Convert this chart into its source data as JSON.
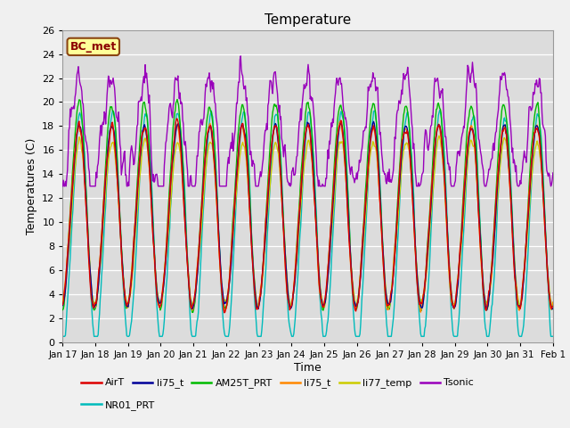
{
  "title": "Temperature",
  "ylabel": "Temperatures (C)",
  "xlabel": "Time",
  "ylim": [
    0,
    26
  ],
  "annotation": "BC_met",
  "annotation_color": "#8B0000",
  "annotation_bg": "#FFFF99",
  "annotation_border": "#8B4513",
  "series_colors": {
    "AirT": "#DD0000",
    "li75_t_blue": "#000099",
    "AM25T_PRT": "#00BB00",
    "li75_t_orange": "#FF8800",
    "li77_temp": "#CCCC00",
    "Tsonic": "#9900BB",
    "NR01_PRT": "#00BBBB"
  },
  "legend_labels": [
    "AirT",
    "li75_t",
    "AM25T_PRT",
    "li75_t",
    "li77_temp",
    "Tsonic",
    "NR01_PRT"
  ],
  "legend_colors": [
    "#DD0000",
    "#000099",
    "#00BB00",
    "#FF8800",
    "#CCCC00",
    "#9900BB",
    "#00BBBB"
  ],
  "xtick_labels": [
    "Jan 17",
    "Jan 18",
    "Jan 19",
    "Jan 20",
    "Jan 21",
    "Jan 22",
    "Jan 23",
    "Jan 24",
    "Jan 25",
    "Jan 26",
    "Jan 27",
    "Jan 28",
    "Jan 29",
    "Jan 30",
    "Jan 31",
    "Feb 1"
  ],
  "plot_bg": "#DCDCDC",
  "fig_bg": "#F0F0F0",
  "n_points": 720,
  "n_days": 15,
  "grid_color": "#FFFFFF"
}
